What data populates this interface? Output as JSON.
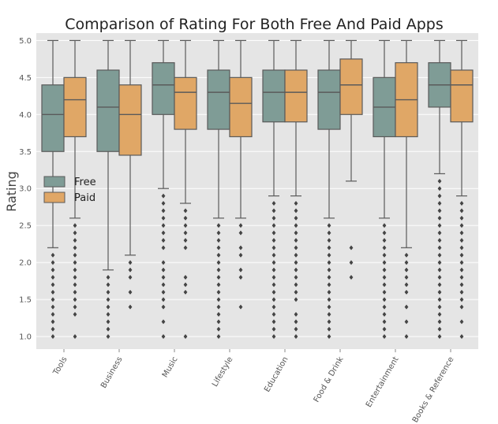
{
  "chart_data": {
    "type": "boxplot",
    "title": "Comparison of Rating For Both Free And Paid Apps",
    "xlabel": "",
    "ylabel": "Rating",
    "ylim": [
      0.83,
      5.1
    ],
    "yticks": [
      "1.0",
      "1.5",
      "2.0",
      "2.5",
      "3.0",
      "3.5",
      "4.0",
      "4.5",
      "5.0"
    ],
    "grid": true,
    "legend_position": "center-left",
    "categories": [
      "Tools",
      "Business",
      "Music",
      "Lifestyle",
      "Education",
      "Food & Drink",
      "Entertainment",
      "Books & Reference"
    ],
    "series": [
      {
        "name": "Free",
        "color": "#7f9c96",
        "boxes": [
          {
            "whisker_low": 2.2,
            "q1": 3.5,
            "median": 4.0,
            "q3": 4.4,
            "whisker_high": 5.0,
            "outliers": [
              1.0,
              1.1,
              1.2,
              1.3,
              1.4,
              1.5,
              1.6,
              1.7,
              1.8,
              1.9,
              2.0,
              2.1
            ]
          },
          {
            "whisker_low": 1.9,
            "q1": 3.5,
            "median": 4.1,
            "q3": 4.6,
            "whisker_high": 5.0,
            "outliers": [
              1.0,
              1.1,
              1.2,
              1.3,
              1.4,
              1.5,
              1.6,
              1.7,
              1.8
            ]
          },
          {
            "whisker_low": 3.0,
            "q1": 4.0,
            "median": 4.4,
            "q3": 4.7,
            "whisker_high": 5.0,
            "outliers": [
              1.0,
              1.2,
              1.4,
              1.5,
              1.6,
              1.7,
              1.8,
              1.9,
              2.0,
              2.2,
              2.3,
              2.4,
              2.5,
              2.6,
              2.7,
              2.8,
              2.9
            ]
          },
          {
            "whisker_low": 2.6,
            "q1": 3.8,
            "median": 4.3,
            "q3": 4.6,
            "whisker_high": 5.0,
            "outliers": [
              1.0,
              1.1,
              1.2,
              1.3,
              1.4,
              1.5,
              1.6,
              1.7,
              1.8,
              1.9,
              2.0,
              2.1,
              2.2,
              2.3,
              2.4,
              2.5
            ]
          },
          {
            "whisker_low": 2.9,
            "q1": 3.9,
            "median": 4.3,
            "q3": 4.6,
            "whisker_high": 5.0,
            "outliers": [
              1.0,
              1.1,
              1.2,
              1.3,
              1.4,
              1.5,
              1.6,
              1.7,
              1.8,
              1.9,
              2.0,
              2.1,
              2.2,
              2.3,
              2.4,
              2.5,
              2.6,
              2.7,
              2.8
            ]
          },
          {
            "whisker_low": 2.6,
            "q1": 3.8,
            "median": 4.3,
            "q3": 4.6,
            "whisker_high": 5.0,
            "outliers": [
              1.0,
              1.1,
              1.2,
              1.3,
              1.4,
              1.5,
              1.6,
              1.7,
              1.8,
              1.9,
              2.0,
              2.1,
              2.2,
              2.3,
              2.4,
              2.5
            ]
          },
          {
            "whisker_low": 2.6,
            "q1": 3.7,
            "median": 4.1,
            "q3": 4.5,
            "whisker_high": 5.0,
            "outliers": [
              1.0,
              1.1,
              1.2,
              1.3,
              1.4,
              1.5,
              1.6,
              1.7,
              1.8,
              1.9,
              2.0,
              2.1,
              2.2,
              2.3,
              2.4,
              2.5
            ]
          },
          {
            "whisker_low": 3.2,
            "q1": 4.1,
            "median": 4.4,
            "q3": 4.7,
            "whisker_high": 5.0,
            "outliers": [
              1.0,
              1.1,
              1.2,
              1.3,
              1.4,
              1.5,
              1.6,
              1.7,
              1.8,
              1.9,
              2.0,
              2.1,
              2.2,
              2.3,
              2.4,
              2.5,
              2.6,
              2.7,
              2.8,
              2.9,
              3.0,
              3.1
            ]
          }
        ]
      },
      {
        "name": "Paid",
        "color": "#e0a766",
        "boxes": [
          {
            "whisker_low": 2.6,
            "q1": 3.7,
            "median": 4.2,
            "q3": 4.5,
            "whisker_high": 5.0,
            "outliers": [
              1.0,
              1.3,
              1.4,
              1.5,
              1.6,
              1.7,
              1.8,
              1.9,
              2.0,
              2.1,
              2.2,
              2.3,
              2.4,
              2.5
            ]
          },
          {
            "whisker_low": 2.1,
            "q1": 3.45,
            "median": 4.0,
            "q3": 4.4,
            "whisker_high": 5.0,
            "outliers": [
              1.4,
              1.6,
              1.8,
              1.9,
              2.0
            ]
          },
          {
            "whisker_low": 2.8,
            "q1": 3.8,
            "median": 4.3,
            "q3": 4.5,
            "whisker_high": 5.0,
            "outliers": [
              1.0,
              1.6,
              1.7,
              1.8,
              2.2,
              2.3,
              2.4,
              2.5,
              2.6,
              2.7
            ]
          },
          {
            "whisker_low": 2.6,
            "q1": 3.7,
            "median": 4.15,
            "q3": 4.5,
            "whisker_high": 5.0,
            "outliers": [
              1.4,
              1.8,
              1.9,
              2.1,
              2.2,
              2.4,
              2.5
            ]
          },
          {
            "whisker_low": 2.9,
            "q1": 3.9,
            "median": 4.3,
            "q3": 4.6,
            "whisker_high": 5.0,
            "outliers": [
              1.0,
              1.1,
              1.2,
              1.3,
              1.5,
              1.6,
              1.7,
              1.8,
              1.9,
              2.0,
              2.1,
              2.2,
              2.3,
              2.4,
              2.5,
              2.6,
              2.7,
              2.8
            ]
          },
          {
            "whisker_low": 3.1,
            "q1": 4.0,
            "median": 4.4,
            "q3": 4.75,
            "whisker_high": 5.0,
            "outliers": [
              1.8,
              2.0,
              2.2
            ]
          },
          {
            "whisker_low": 2.2,
            "q1": 3.7,
            "median": 4.2,
            "q3": 4.7,
            "whisker_high": 5.0,
            "outliers": [
              1.0,
              1.2,
              1.4,
              1.6,
              1.7,
              1.8,
              1.9,
              2.0,
              2.1
            ]
          },
          {
            "whisker_low": 2.9,
            "q1": 3.9,
            "median": 4.4,
            "q3": 4.6,
            "whisker_high": 5.0,
            "outliers": [
              1.0,
              1.2,
              1.4,
              1.5,
              1.6,
              1.7,
              1.8,
              1.9,
              2.0,
              2.1,
              2.2,
              2.3,
              2.4,
              2.5,
              2.6,
              2.7,
              2.8
            ]
          }
        ]
      }
    ]
  }
}
